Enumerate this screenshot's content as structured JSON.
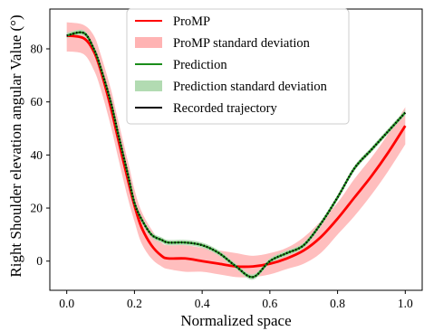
{
  "chart_data": {
    "type": "line",
    "xlabel": "Normalized space",
    "ylabel": "Right Shoulder elevation angular Value (°)",
    "xlim": [
      -0.05,
      1.05
    ],
    "ylim": [
      -11,
      95
    ],
    "xticks": [
      0.0,
      0.2,
      0.4,
      0.6,
      0.8,
      1.0
    ],
    "xtick_labels": [
      "0.0",
      "0.2",
      "0.4",
      "0.6",
      "0.8",
      "1.0"
    ],
    "yticks": [
      0,
      20,
      40,
      60,
      80
    ],
    "ytick_labels": [
      "0",
      "20",
      "40",
      "60",
      "80"
    ],
    "grid": false,
    "legend_position": "top-center",
    "legend": [
      {
        "label": "ProMP",
        "kind": "line",
        "color": "#ff0000"
      },
      {
        "label": "ProMP standard deviation",
        "kind": "patch",
        "color": "#ffb3b3"
      },
      {
        "label": "Prediction",
        "kind": "line",
        "color": "#1a8c1a"
      },
      {
        "label": "Prediction standard deviation",
        "kind": "patch",
        "color": "#b2dbb2"
      },
      {
        "label": "Recorded trajectory",
        "kind": "line",
        "color": "#000000"
      }
    ],
    "x": [
      0.0,
      0.05,
      0.08,
      0.1,
      0.13,
      0.15,
      0.18,
      0.2,
      0.22,
      0.25,
      0.28,
      0.3,
      0.35,
      0.4,
      0.45,
      0.5,
      0.55,
      0.6,
      0.65,
      0.7,
      0.75,
      0.8,
      0.85,
      0.9,
      0.95,
      1.0
    ],
    "series": [
      {
        "name": "ProMP",
        "color": "#ff0000",
        "values": [
          85,
          84,
          79,
          72,
          58,
          47,
          31,
          21,
          13,
          6,
          2,
          1,
          1,
          0,
          -1,
          -2,
          -2,
          -1,
          1,
          4,
          9,
          16,
          24,
          32,
          41,
          51
        ],
        "std_lower": [
          79,
          78,
          72,
          65,
          51,
          40,
          24,
          15,
          7,
          1,
          -2,
          -3,
          -4,
          -4,
          -5,
          -6,
          -6,
          -5,
          -3,
          -1,
          3,
          10,
          17,
          25,
          34,
          44
        ],
        "std_upper": [
          90,
          89,
          85,
          78,
          65,
          54,
          38,
          27,
          19,
          12,
          7,
          6,
          6,
          5,
          4,
          3,
          2,
          3,
          5,
          9,
          15,
          22,
          31,
          39,
          48,
          58
        ]
      },
      {
        "name": "Prediction",
        "color": "#1a8c1a",
        "values": [
          85,
          86,
          80,
          73,
          60,
          49,
          33,
          22,
          16,
          10,
          8,
          7,
          7,
          6,
          3,
          -2,
          -6,
          0,
          3,
          6,
          14,
          24,
          35,
          42,
          49,
          56
        ],
        "std_lower": [
          84,
          85,
          79,
          72,
          59,
          48,
          32,
          21,
          15,
          9,
          7,
          6,
          6,
          5,
          2,
          -3,
          -7,
          -1,
          2,
          5,
          13,
          23,
          34,
          41,
          48,
          55
        ],
        "std_upper": [
          86,
          87,
          81,
          74,
          61,
          50,
          34,
          23,
          17,
          11,
          9,
          8,
          8,
          7,
          4,
          -1,
          -5,
          1,
          4,
          7,
          15,
          25,
          36,
          43,
          50,
          57
        ]
      },
      {
        "name": "Recorded trajectory",
        "color": "#000000",
        "dashed": true,
        "values": [
          85,
          86,
          80,
          73,
          60,
          49,
          33,
          22,
          16,
          10,
          8,
          7,
          7,
          6,
          3,
          -2,
          -6,
          0,
          3,
          6,
          14,
          24,
          35,
          42,
          49,
          56
        ]
      }
    ]
  }
}
